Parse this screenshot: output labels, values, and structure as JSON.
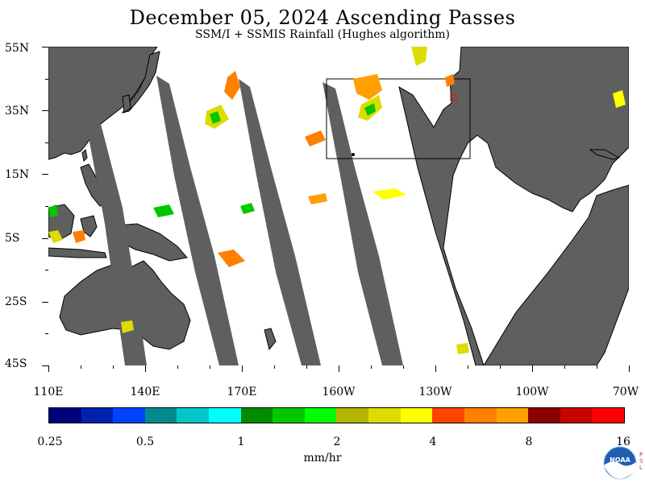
{
  "title": "December 05, 2024  Ascending Passes",
  "subtitle": "SSM/I + SSMIS Rainfall (Hughes algorithm)",
  "lat_labels": [
    "55N",
    "35N",
    "15N",
    "5S",
    "25S",
    "45S"
  ],
  "lon_labels": [
    "110E",
    "140E",
    "170E",
    "160W",
    "130W",
    "100W",
    "70W"
  ],
  "colorbar": {
    "colors": [
      "#00007f",
      "#0022b0",
      "#0044ff",
      "#008c8c",
      "#00c8c8",
      "#00ffff",
      "#008c00",
      "#00c800",
      "#00ff00",
      "#b4b400",
      "#dcdc00",
      "#ffff00",
      "#ff4400",
      "#ff7f00",
      "#ffa000",
      "#8c0000",
      "#c80000",
      "#ff0000"
    ],
    "tick_labels": [
      "0.25",
      "0.5",
      "1",
      "2",
      "4",
      "8",
      "16"
    ],
    "units": "mm/hr"
  },
  "logo": {
    "text": "NOAA",
    "side_text": "PSL"
  },
  "colors": {
    "no_data": "#5f5f5f",
    "coast": "#000000",
    "background": "#ffffff"
  }
}
